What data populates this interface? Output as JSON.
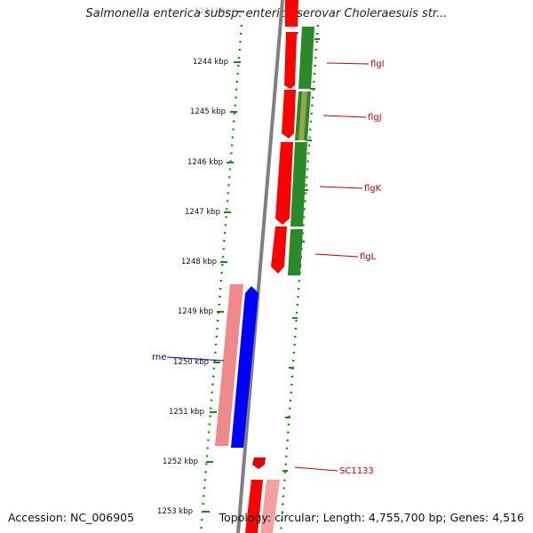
{
  "title": "Salmonella enterica subsp. enterica serovar Choleraesuis str...",
  "accession": "Accession: NC_006905",
  "summary": "Topology: circular; Length: 4,755,700 bp; Genes: 4,516",
  "ticks": [
    "1243 kbp",
    "1244 kbp",
    "1245 kbp",
    "1246 kbp",
    "1247 kbp",
    "1248 kbp",
    "1249 kbp",
    "1250 kbp",
    "1251 kbp",
    "1252 kbp",
    "1253 kbp"
  ],
  "gene_labels": [
    "flgI",
    "flgJ",
    "flgK",
    "flgL",
    "rne",
    "SC1133"
  ],
  "colors": {
    "forward_cds": "#ff0000",
    "reverse_cds": "#0000ff",
    "forward_gene": "#2a8a2a",
    "backbone": "#808080",
    "pseudo": "#f08a8a",
    "label_red": "#cc0000",
    "label_blue": "#0000aa"
  }
}
